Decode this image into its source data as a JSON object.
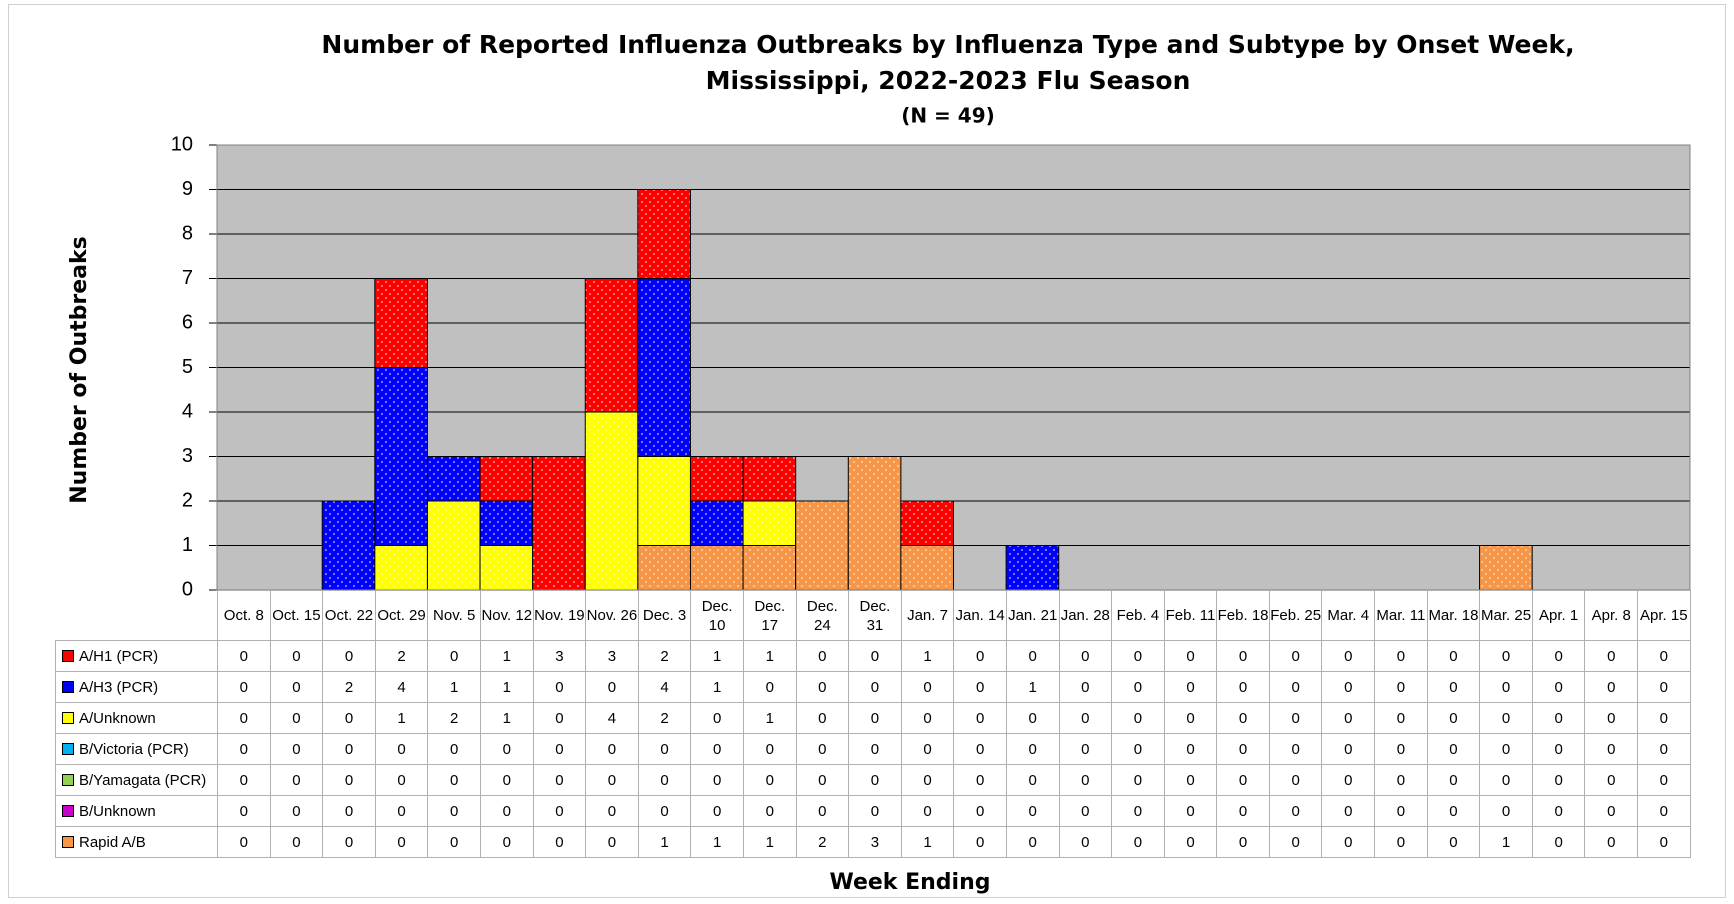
{
  "chart_data": {
    "type": "stacked_bar",
    "title": "Number of Reported Influenza Outbreaks by Influenza Type and Subtype by Onset Week,",
    "title_line2": "Mississippi, 2022-2023 Flu Season",
    "subtitle": "(N = 49)",
    "y_label": "Number of Outbreaks",
    "x_label": "Week Ending",
    "categories": [
      "Oct. 8",
      "Oct. 15",
      "Oct. 22",
      "Oct. 29",
      "Nov. 5",
      "Nov. 12",
      "Nov. 19",
      "Nov. 26",
      "Dec. 3",
      "Dec. 10",
      "Dec. 17",
      "Dec. 24",
      "Dec. 31",
      "Jan. 7",
      "Jan. 14",
      "Jan. 21",
      "Jan. 28",
      "Feb. 4",
      "Feb. 11",
      "Feb. 18",
      "Feb. 25",
      "Mar. 4",
      "Mar. 11",
      "Mar. 18",
      "Mar. 25",
      "Apr. 1",
      "Apr. 8",
      "Apr. 15"
    ],
    "series": [
      {
        "name": "A/H1 (PCR)",
        "color": "#ff0000",
        "values": [
          0,
          0,
          0,
          2,
          0,
          1,
          3,
          3,
          2,
          1,
          1,
          0,
          0,
          1,
          0,
          0,
          0,
          0,
          0,
          0,
          0,
          0,
          0,
          0,
          0,
          0,
          0,
          0
        ]
      },
      {
        "name": "A/H3 (PCR)",
        "color": "#0000ff",
        "values": [
          0,
          0,
          2,
          4,
          1,
          1,
          0,
          0,
          4,
          1,
          0,
          0,
          0,
          0,
          0,
          1,
          0,
          0,
          0,
          0,
          0,
          0,
          0,
          0,
          0,
          0,
          0,
          0
        ]
      },
      {
        "name": "A/Unknown",
        "color": "#ffff00",
        "values": [
          0,
          0,
          0,
          1,
          2,
          1,
          0,
          4,
          2,
          0,
          1,
          0,
          0,
          0,
          0,
          0,
          0,
          0,
          0,
          0,
          0,
          0,
          0,
          0,
          0,
          0,
          0,
          0
        ]
      },
      {
        "name": "B/Victoria (PCR)",
        "color": "#00b0f0",
        "values": [
          0,
          0,
          0,
          0,
          0,
          0,
          0,
          0,
          0,
          0,
          0,
          0,
          0,
          0,
          0,
          0,
          0,
          0,
          0,
          0,
          0,
          0,
          0,
          0,
          0,
          0,
          0,
          0
        ]
      },
      {
        "name": "B/Yamagata (PCR)",
        "color": "#92d050",
        "values": [
          0,
          0,
          0,
          0,
          0,
          0,
          0,
          0,
          0,
          0,
          0,
          0,
          0,
          0,
          0,
          0,
          0,
          0,
          0,
          0,
          0,
          0,
          0,
          0,
          0,
          0,
          0,
          0
        ]
      },
      {
        "name": "B/Unknown",
        "color": "#cc00cc",
        "values": [
          0,
          0,
          0,
          0,
          0,
          0,
          0,
          0,
          0,
          0,
          0,
          0,
          0,
          0,
          0,
          0,
          0,
          0,
          0,
          0,
          0,
          0,
          0,
          0,
          0,
          0,
          0,
          0
        ]
      },
      {
        "name": "Rapid A/B",
        "color": "#f79646",
        "values": [
          0,
          0,
          0,
          0,
          0,
          0,
          0,
          0,
          1,
          1,
          1,
          2,
          3,
          1,
          0,
          0,
          0,
          0,
          0,
          0,
          0,
          0,
          0,
          0,
          1,
          0,
          0,
          0
        ]
      }
    ],
    "ylim": [
      0,
      10
    ],
    "yticks": [
      0,
      1,
      2,
      3,
      4,
      5,
      6,
      7,
      8,
      9,
      10
    ],
    "grid": true,
    "plot_background": "#c0c0c0"
  }
}
